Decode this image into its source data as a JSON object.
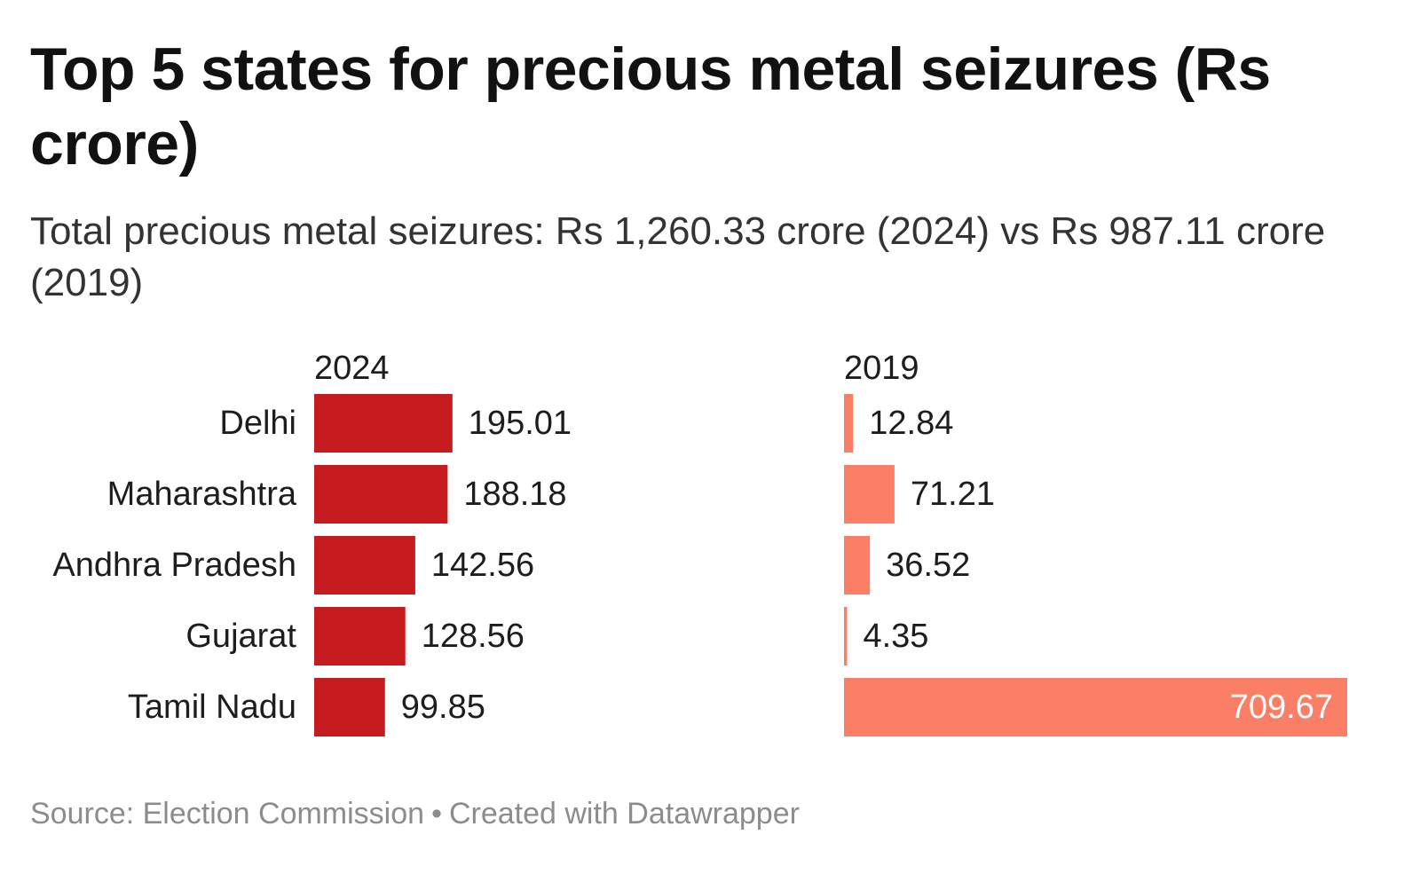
{
  "title": "Top 5 states for precious metal seizures (Rs crore)",
  "subtitle": "Total precious metal seizures: Rs 1,260.33 crore (2024) vs Rs 987.11 crore (2019)",
  "footer": {
    "source": "Source: Election Commission",
    "separator": "•",
    "credit": "Created with Datawrapper"
  },
  "colors": {
    "series_2024": "#c71c1f",
    "series_2019": "#fa7f66",
    "text": "#1d1d1d",
    "inside_label": "#ffffff"
  },
  "chart_data": {
    "type": "bar",
    "orientation": "horizontal",
    "layout": "split-bars",
    "categories": [
      "Delhi",
      "Maharashtra",
      "Andhra Pradesh",
      "Gujarat",
      "Tamil Nadu"
    ],
    "series": [
      {
        "name": "2024",
        "values": [
          195.01,
          188.18,
          142.56,
          128.56,
          99.85
        ]
      },
      {
        "name": "2019",
        "values": [
          12.84,
          71.21,
          36.52,
          4.35,
          709.67
        ]
      }
    ],
    "xlim": [
      0,
      709.67
    ],
    "grid": false,
    "legend": "none",
    "value_labels": true
  }
}
